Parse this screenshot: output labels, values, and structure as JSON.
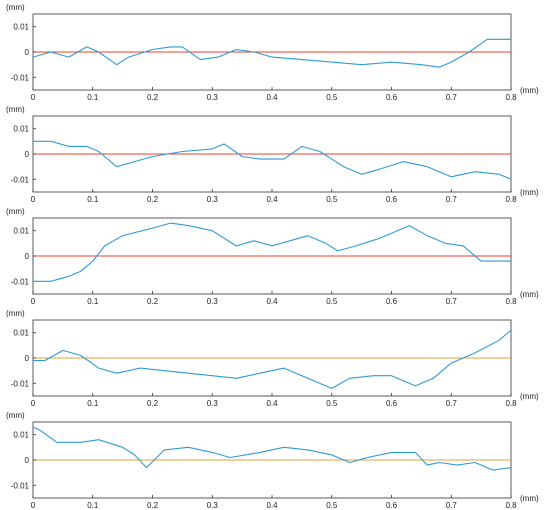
{
  "colors": {
    "series": "#2e9bd6",
    "reference": "#e8402a",
    "reference_alt": "#e5a03a",
    "axis": "#333333"
  },
  "chart_data": [
    {
      "type": "line",
      "xlabel": "(mm)",
      "ylabel": "(mm)",
      "xlim": [
        0,
        0.8
      ],
      "ylim": [
        -0.015,
        0.015
      ],
      "xticks": [
        0,
        0.1,
        0.2,
        0.3,
        0.4,
        0.5,
        0.6,
        0.7,
        0.8
      ],
      "xtick_labels": [
        "0",
        "0.1",
        "0.2",
        "0.3",
        "0.4",
        "0.5",
        "0.6",
        "0.7",
        "0.8"
      ],
      "yticks": [
        0.01,
        0,
        -0.01
      ],
      "ytick_labels": [
        "0.01",
        "0",
        "-0.01"
      ],
      "reference_y": 0,
      "reference_color": "red",
      "x": [
        0,
        0.03,
        0.06,
        0.09,
        0.11,
        0.14,
        0.16,
        0.2,
        0.23,
        0.25,
        0.28,
        0.31,
        0.34,
        0.37,
        0.4,
        0.45,
        0.5,
        0.55,
        0.6,
        0.65,
        0.68,
        0.7,
        0.73,
        0.76,
        0.8
      ],
      "series": [
        {
          "values": [
            -0.002,
            0.0,
            -0.002,
            0.002,
            0.0,
            -0.005,
            -0.002,
            0.001,
            0.002,
            0.002,
            -0.003,
            -0.002,
            0.001,
            0.0,
            -0.002,
            -0.003,
            -0.004,
            -0.005,
            -0.004,
            -0.005,
            -0.006,
            -0.004,
            0.0,
            0.005,
            0.005
          ]
        }
      ]
    },
    {
      "type": "line",
      "xlabel": "(mm)",
      "ylabel": "(mm)",
      "xlim": [
        0,
        0.8
      ],
      "ylim": [
        -0.015,
        0.015
      ],
      "xticks": [
        0,
        0.1,
        0.2,
        0.3,
        0.4,
        0.5,
        0.6,
        0.7,
        0.8
      ],
      "xtick_labels": [
        "0",
        "0.1",
        "0.2",
        "0.3",
        "0.4",
        "0.5",
        "0.6",
        "0.7",
        "0.8"
      ],
      "yticks": [
        0.01,
        0,
        -0.01
      ],
      "ytick_labels": [
        "0.01",
        "0",
        "-0.01"
      ],
      "reference_y": 0,
      "reference_color": "red",
      "x": [
        0,
        0.03,
        0.06,
        0.09,
        0.11,
        0.14,
        0.17,
        0.2,
        0.25,
        0.3,
        0.32,
        0.35,
        0.38,
        0.42,
        0.45,
        0.48,
        0.52,
        0.55,
        0.58,
        0.62,
        0.66,
        0.7,
        0.74,
        0.78,
        0.8
      ],
      "series": [
        {
          "values": [
            0.005,
            0.005,
            0.003,
            0.003,
            0.001,
            -0.005,
            -0.003,
            -0.001,
            0.001,
            0.002,
            0.004,
            -0.001,
            -0.002,
            -0.002,
            0.003,
            0.001,
            -0.005,
            -0.008,
            -0.006,
            -0.003,
            -0.005,
            -0.009,
            -0.007,
            -0.008,
            -0.01
          ]
        }
      ]
    },
    {
      "type": "line",
      "xlabel": "(mm)",
      "ylabel": "(mm)",
      "xlim": [
        0,
        0.8
      ],
      "ylim": [
        -0.015,
        0.015
      ],
      "xticks": [
        0,
        0.1,
        0.2,
        0.3,
        0.4,
        0.5,
        0.6,
        0.7,
        0.8
      ],
      "xtick_labels": [
        "0",
        "0.1",
        "0.2",
        "0.3",
        "0.4",
        "0.5",
        "0.6",
        "0.7",
        "0.8"
      ],
      "yticks": [
        0.01,
        0,
        -0.01
      ],
      "ytick_labels": [
        "0.01",
        "0",
        "-0.01"
      ],
      "reference_y": 0,
      "reference_color": "red",
      "x": [
        0,
        0.03,
        0.06,
        0.08,
        0.1,
        0.12,
        0.15,
        0.2,
        0.23,
        0.26,
        0.3,
        0.34,
        0.37,
        0.4,
        0.43,
        0.46,
        0.49,
        0.51,
        0.54,
        0.58,
        0.63,
        0.66,
        0.69,
        0.72,
        0.75,
        0.8
      ],
      "series": [
        {
          "values": [
            -0.01,
            -0.01,
            -0.008,
            -0.006,
            -0.002,
            0.004,
            0.008,
            0.011,
            0.013,
            0.012,
            0.01,
            0.004,
            0.006,
            0.004,
            0.006,
            0.008,
            0.005,
            0.002,
            0.004,
            0.007,
            0.012,
            0.008,
            0.005,
            0.004,
            -0.002,
            -0.002
          ]
        }
      ]
    },
    {
      "type": "line",
      "xlabel": "(mm)",
      "ylabel": "(mm)",
      "xlim": [
        0,
        0.8
      ],
      "ylim": [
        -0.015,
        0.015
      ],
      "xticks": [
        0,
        0.1,
        0.2,
        0.3,
        0.4,
        0.5,
        0.6,
        0.7,
        0.8
      ],
      "xtick_labels": [
        "0",
        "0.1",
        "0.2",
        "0.3",
        "0.4",
        "0.5",
        "0.6",
        "0.7",
        "0.8"
      ],
      "yticks": [
        0.01,
        0,
        -0.01
      ],
      "ytick_labels": [
        "0.01",
        "0",
        "-0.01"
      ],
      "reference_y": 0,
      "reference_color": "orange",
      "x": [
        0,
        0.02,
        0.05,
        0.08,
        0.11,
        0.14,
        0.18,
        0.22,
        0.26,
        0.3,
        0.34,
        0.38,
        0.42,
        0.46,
        0.5,
        0.53,
        0.57,
        0.6,
        0.62,
        0.64,
        0.67,
        0.7,
        0.74,
        0.78,
        0.8
      ],
      "series": [
        {
          "values": [
            -0.001,
            -0.001,
            0.003,
            0.001,
            -0.004,
            -0.006,
            -0.004,
            -0.005,
            -0.006,
            -0.007,
            -0.008,
            -0.006,
            -0.004,
            -0.008,
            -0.012,
            -0.008,
            -0.007,
            -0.007,
            -0.009,
            -0.011,
            -0.008,
            -0.002,
            0.002,
            0.007,
            0.011
          ]
        }
      ]
    },
    {
      "type": "line",
      "xlabel": "(mm)",
      "ylabel": "(mm)",
      "xlim": [
        0,
        0.8
      ],
      "ylim": [
        -0.015,
        0.015
      ],
      "xticks": [
        0,
        0.1,
        0.2,
        0.3,
        0.4,
        0.5,
        0.6,
        0.7,
        0.8
      ],
      "xtick_labels": [
        "0",
        "0.1",
        "0.2",
        "0.3",
        "0.4",
        "0.5",
        "0.6",
        "0.7",
        "0.8"
      ],
      "yticks": [
        0.01,
        0,
        -0.01
      ],
      "ytick_labels": [
        "0.01",
        "0",
        "-0.01"
      ],
      "reference_y": 0,
      "reference_color": "orange",
      "x": [
        0,
        0.01,
        0.04,
        0.08,
        0.11,
        0.15,
        0.17,
        0.19,
        0.22,
        0.26,
        0.3,
        0.33,
        0.38,
        0.42,
        0.46,
        0.5,
        0.53,
        0.56,
        0.6,
        0.64,
        0.66,
        0.68,
        0.71,
        0.74,
        0.77,
        0.8
      ],
      "series": [
        {
          "values": [
            0.013,
            0.012,
            0.007,
            0.007,
            0.008,
            0.005,
            0.002,
            -0.003,
            0.004,
            0.005,
            0.003,
            0.001,
            0.003,
            0.005,
            0.004,
            0.002,
            -0.001,
            0.001,
            0.003,
            0.003,
            -0.002,
            -0.001,
            -0.002,
            -0.001,
            -0.004,
            -0.003
          ]
        }
      ]
    }
  ]
}
